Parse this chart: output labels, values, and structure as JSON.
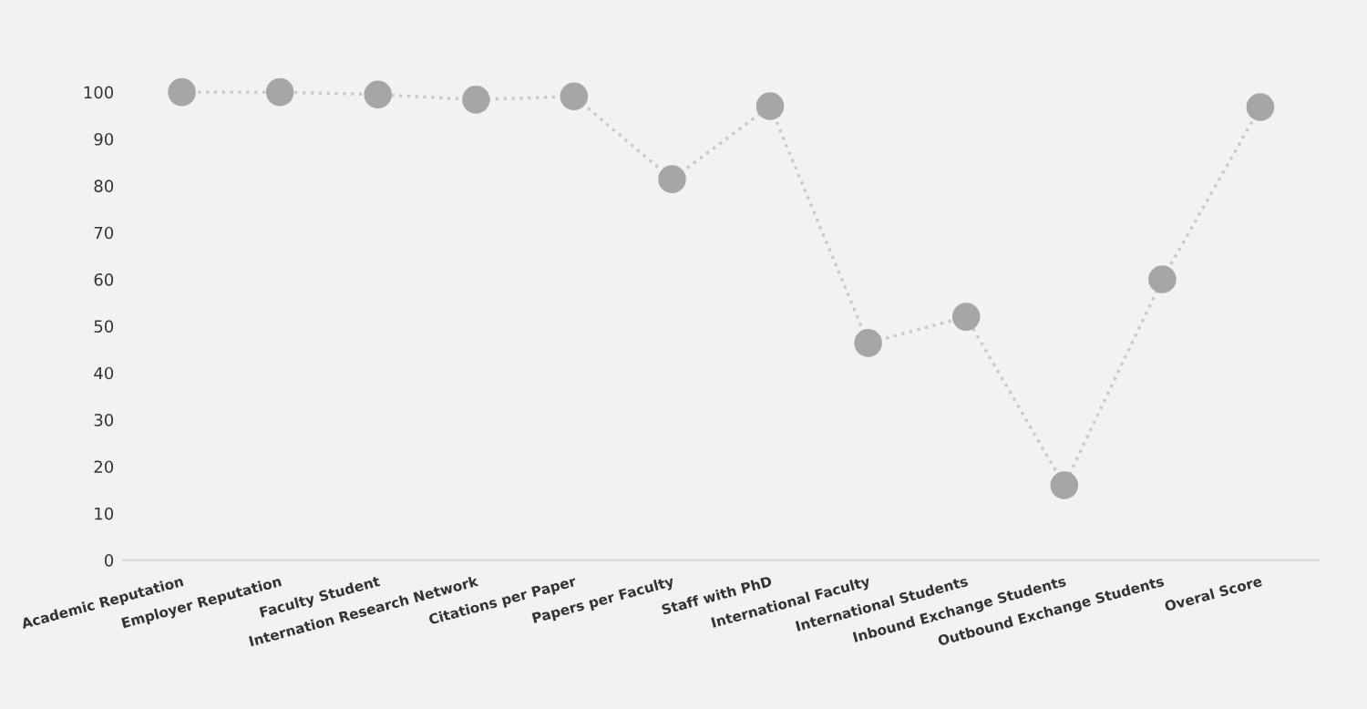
{
  "chart_data": {
    "type": "line",
    "categories": [
      "Academic Reputation",
      "Employer Reputation",
      "Faculty Student",
      "Internation Research Network",
      "Citations per Paper",
      "Papers per Faculty",
      "Staff with PhD",
      "International Faculty",
      "International Students",
      "Inbound Exchange Students",
      "Outbound Exchange Students",
      "Overal Score"
    ],
    "series": [
      {
        "color": "#a6a6a6",
        "values": [
          100,
          100,
          99.5,
          98.4,
          99.1,
          81.4,
          97,
          46.4,
          52,
          16,
          60,
          96.8
        ]
      }
    ],
    "ylim": [
      0,
      100
    ],
    "yticks": [
      0,
      10,
      20,
      30,
      40,
      50,
      60,
      70,
      80,
      90,
      100
    ],
    "grid": false,
    "marker": "circle",
    "line_style": "dotted"
  }
}
